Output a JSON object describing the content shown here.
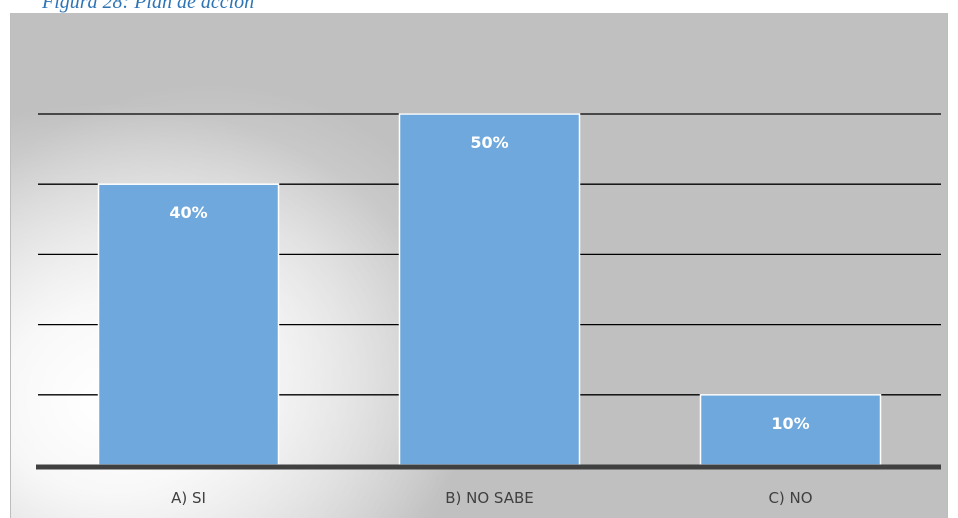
{
  "caption": "Figura 28: Plan de acción",
  "chart_data": {
    "type": "bar",
    "categories": [
      "A) SI",
      "B) NO SABE",
      "C) NO"
    ],
    "values": [
      40,
      50,
      10
    ],
    "labels": [
      "40%",
      "50%",
      "10%"
    ],
    "unit": "%",
    "ylim": [
      0,
      50
    ],
    "gridlines": [
      10,
      20,
      30,
      40,
      50
    ],
    "grid": true,
    "legend": "none",
    "bar_color": "#6fa8dc",
    "bar_border_color": "#ffffff",
    "grid_color": "#000000",
    "axis_color": "#404040",
    "background_color": "#c0c0c0"
  }
}
